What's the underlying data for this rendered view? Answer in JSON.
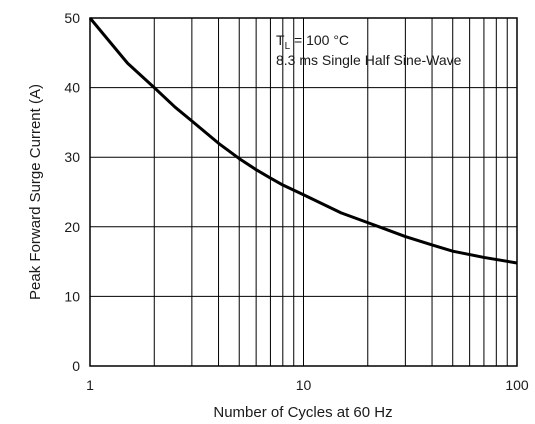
{
  "chart_data": {
    "type": "line",
    "xscale": "log",
    "xlim": [
      1,
      100
    ],
    "ylim": [
      0,
      50
    ],
    "grid": true,
    "xticks": [
      1,
      10,
      100
    ],
    "xtick_labels": [
      "1",
      "10",
      "100"
    ],
    "yticks": [
      0,
      10,
      20,
      30,
      40,
      50
    ],
    "ytick_labels": [
      "0",
      "10",
      "20",
      "30",
      "40",
      "50"
    ],
    "xlabel": "Number of Cycles at 60 Hz",
    "ylabel": "Peak Forward Surge Current (A)",
    "annotation": {
      "line1_prefix": "T",
      "line1_sub": "L",
      "line1_suffix": " = 100 °C",
      "line2": "8.3 ms Single Half Sine-Wave"
    },
    "series": [
      {
        "color": "#000000",
        "x": [
          1,
          1.5,
          2,
          2.5,
          3,
          4,
          5,
          6,
          7,
          8,
          10,
          15,
          20,
          30,
          40,
          50,
          70,
          100
        ],
        "y": [
          50,
          43.5,
          40,
          37.2,
          35.2,
          32,
          29.8,
          28.2,
          27,
          26,
          24.6,
          22,
          20.6,
          18.6,
          17.4,
          16.5,
          15.6,
          14.8
        ]
      }
    ]
  }
}
